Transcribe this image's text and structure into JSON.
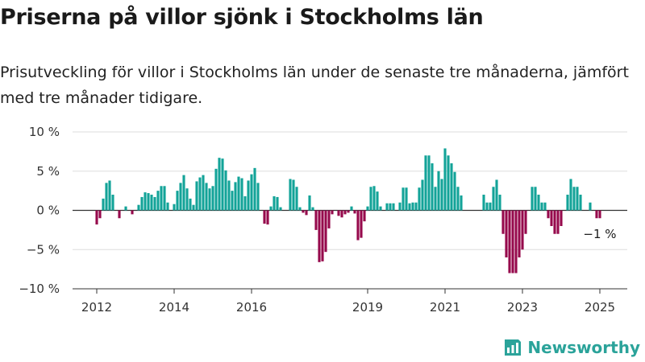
{
  "header": {
    "title": "Priserna på villor sjönk i Stockholms län",
    "subtitle": "Prisutveckling för villor i Stockholms län under de senaste tre månaderna, jämfört med tre månader tidigare."
  },
  "brand": {
    "name": "Newsworthy",
    "icon": "newsworthy-logo-icon"
  },
  "colors": {
    "positive": "#13a398",
    "negative": "#96094c",
    "grid": "#dddddd",
    "axis": "#333333"
  },
  "chart_data": {
    "type": "bar",
    "ylim": [
      -10,
      10
    ],
    "y_ticks": [
      10,
      5,
      0,
      -5,
      -10
    ],
    "y_tick_labels": [
      "10 %",
      "5 %",
      "0 %",
      "−5 %",
      "−10 %"
    ],
    "x_ticks": [
      "2012",
      "2014",
      "2016",
      "2019",
      "2021",
      "2023",
      "2025"
    ],
    "last_value_label": "−1 %",
    "x": [
      "2012-01",
      "2012-02",
      "2012-03",
      "2012-04",
      "2012-05",
      "2012-06",
      "2012-07",
      "2012-08",
      "2012-09",
      "2012-10",
      "2012-11",
      "2012-12",
      "2013-01",
      "2013-02",
      "2013-03",
      "2013-04",
      "2013-05",
      "2013-06",
      "2013-07",
      "2013-08",
      "2013-09",
      "2013-10",
      "2013-11",
      "2013-12",
      "2014-01",
      "2014-02",
      "2014-03",
      "2014-04",
      "2014-05",
      "2014-06",
      "2014-07",
      "2014-08",
      "2014-09",
      "2014-10",
      "2014-11",
      "2014-12",
      "2015-01",
      "2015-02",
      "2015-03",
      "2015-04",
      "2015-05",
      "2015-06",
      "2015-07",
      "2015-08",
      "2015-09",
      "2015-10",
      "2015-11",
      "2015-12",
      "2016-01",
      "2016-02",
      "2016-03",
      "2016-04",
      "2016-05",
      "2016-06",
      "2016-07",
      "2016-08",
      "2016-09",
      "2016-10",
      "2016-11",
      "2016-12",
      "2017-01",
      "2017-02",
      "2017-03",
      "2017-04",
      "2017-05",
      "2017-06",
      "2017-07",
      "2017-08",
      "2017-09",
      "2017-10",
      "2017-11",
      "2017-12",
      "2018-01",
      "2018-02",
      "2018-03",
      "2018-04",
      "2018-05",
      "2018-06",
      "2018-07",
      "2018-08",
      "2018-09",
      "2018-10",
      "2018-11",
      "2018-12",
      "2019-01",
      "2019-02",
      "2019-03",
      "2019-04",
      "2019-05",
      "2019-06",
      "2019-07",
      "2019-08",
      "2019-09",
      "2019-10",
      "2019-11",
      "2019-12",
      "2020-01",
      "2020-02",
      "2020-03",
      "2020-04",
      "2020-05",
      "2020-06",
      "2020-07",
      "2020-08",
      "2020-09",
      "2020-10",
      "2020-11",
      "2020-12",
      "2021-01",
      "2021-02",
      "2021-03",
      "2021-04",
      "2021-05",
      "2021-06",
      "2021-07",
      "2021-08",
      "2021-09",
      "2021-10",
      "2021-11",
      "2021-12",
      "2022-01",
      "2022-02",
      "2022-03",
      "2022-04",
      "2022-05",
      "2022-06",
      "2022-07",
      "2022-08",
      "2022-09",
      "2022-10",
      "2022-11",
      "2022-12",
      "2023-01",
      "2023-02",
      "2023-03",
      "2023-04",
      "2023-05",
      "2023-06",
      "2023-07",
      "2023-08",
      "2023-09",
      "2023-10",
      "2023-11",
      "2023-12",
      "2024-01",
      "2024-02",
      "2024-03",
      "2024-04",
      "2024-05",
      "2024-06",
      "2024-07",
      "2024-08",
      "2024-09",
      "2024-10",
      "2024-11",
      "2024-12",
      "2025-01"
    ],
    "values": [
      -1.8,
      -1.0,
      1.5,
      3.5,
      3.8,
      2.0,
      0,
      -1.0,
      0,
      0.5,
      0,
      -0.5,
      0,
      0.7,
      1.7,
      2.3,
      2.2,
      2.0,
      1.7,
      2.5,
      3.1,
      3.1,
      1.0,
      0,
      0.8,
      2.5,
      3.5,
      4.5,
      2.8,
      1.5,
      0.7,
      3.7,
      4.2,
      4.5,
      3.5,
      2.8,
      3.1,
      5.3,
      6.7,
      6.6,
      5.1,
      3.8,
      2.5,
      3.6,
      4.3,
      4.1,
      1.8,
      3.8,
      4.6,
      5.4,
      3.5,
      0,
      -1.7,
      -1.8,
      0.5,
      1.8,
      1.7,
      0.4,
      0,
      0,
      4.0,
      3.9,
      3.0,
      0.4,
      -0.3,
      -0.6,
      1.9,
      0.4,
      -2.5,
      -6.6,
      -6.5,
      -5.3,
      -2.3,
      -0.5,
      0,
      -0.7,
      -0.9,
      -0.5,
      -0.3,
      0.5,
      -0.4,
      -3.8,
      -3.5,
      -1.4,
      0.5,
      3.0,
      3.1,
      2.4,
      0.5,
      0,
      0.9,
      0.9,
      0.9,
      0,
      1.0,
      2.9,
      2.9,
      0.9,
      1.0,
      1.0,
      2.9,
      3.9,
      7.0,
      7.0,
      6.0,
      3.0,
      5.0,
      4.0,
      7.9,
      7.0,
      6.0,
      4.9,
      3.0,
      1.9,
      0,
      0,
      0,
      0,
      0,
      0,
      2.0,
      1.0,
      1.0,
      3.0,
      3.9,
      2.0,
      -3.0,
      -6.0,
      -8.0,
      -8.0,
      -8.0,
      -6.0,
      -5.0,
      -3.0,
      0,
      3.0,
      3.0,
      2.0,
      1.0,
      1.0,
      -1.0,
      -2.0,
      -3.0,
      -3.0,
      -2.0,
      0,
      2.0,
      4.0,
      3.0,
      3.0,
      2.0,
      0,
      0,
      1.0,
      0,
      -1.0,
      -1.0
    ]
  }
}
